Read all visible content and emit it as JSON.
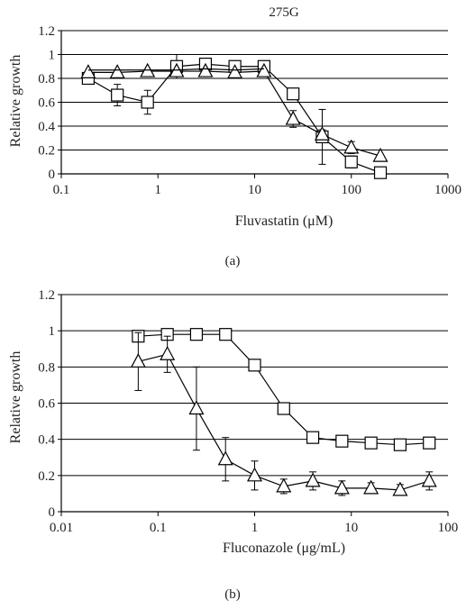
{
  "chart_data": [
    {
      "type": "line",
      "title": "275G",
      "caption": "(a)",
      "xlabel": "Fluvastatin (μM)",
      "ylabel": "Relative growth",
      "xscale": "log",
      "xlim": [
        0.1,
        1000
      ],
      "ylim": [
        0,
        1.2
      ],
      "xticks": [
        0.1,
        1,
        10,
        100,
        1000
      ],
      "xtick_labels": [
        "0.1",
        "1",
        "10",
        "100",
        "1000"
      ],
      "yticks": [
        0,
        0.2,
        0.4,
        0.6,
        0.8,
        1,
        1.2
      ],
      "ytick_labels": [
        "0",
        "0.2",
        "0.4",
        "0.6",
        "0.8",
        "1",
        "1.2"
      ],
      "grid": "horizontal",
      "series": [
        {
          "marker": "square",
          "x": [
            0.19,
            0.38,
            0.78,
            1.56,
            3.1,
            6.25,
            12.5,
            25,
            50,
            100,
            200
          ],
          "y": [
            0.8,
            0.66,
            0.6,
            0.9,
            0.92,
            0.9,
            0.9,
            0.67,
            0.31,
            0.1,
            0.01
          ],
          "err": [
            0,
            0.09,
            0.1,
            0.1,
            0,
            0,
            0,
            0,
            0.23,
            0.05,
            0
          ]
        },
        {
          "marker": "triangle",
          "x": [
            0.19,
            0.38,
            0.78,
            1.56,
            3.1,
            6.25,
            12.5,
            25,
            50,
            100,
            200
          ],
          "y": [
            0.85,
            0.85,
            0.86,
            0.86,
            0.86,
            0.85,
            0.86,
            0.46,
            0.33,
            0.22,
            0.15
          ],
          "err": [
            0,
            0,
            0,
            0,
            0,
            0,
            0,
            0.07,
            0.04,
            0.05,
            0
          ]
        },
        {
          "marker": "none",
          "x": [
            0.19,
            0.38,
            0.78,
            1.56,
            3.1,
            6.25,
            12.5
          ],
          "y": [
            0.87,
            0.87,
            0.87,
            0.87,
            0.88,
            0.87,
            0.88
          ],
          "err": [
            0,
            0,
            0,
            0,
            0,
            0,
            0
          ]
        }
      ]
    },
    {
      "type": "line",
      "title": "",
      "caption": "(b)",
      "xlabel": "Fluconazole (μg/mL)",
      "ylabel": "Relative growth",
      "xscale": "log",
      "xlim": [
        0.01,
        100
      ],
      "ylim": [
        0,
        1.2
      ],
      "xticks": [
        0.01,
        0.1,
        1,
        10,
        100
      ],
      "xtick_labels": [
        "0.01",
        "0.1",
        "1",
        "10",
        "100"
      ],
      "yticks": [
        0,
        0.2,
        0.4,
        0.6,
        0.8,
        1,
        1.2
      ],
      "ytick_labels": [
        "0",
        "0.2",
        "0.4",
        "0.6",
        "0.8",
        "1",
        "1.2"
      ],
      "grid": "horizontal",
      "series": [
        {
          "marker": "square",
          "x": [
            0.0625,
            0.125,
            0.25,
            0.5,
            1,
            2,
            4,
            8,
            16,
            32,
            64
          ],
          "y": [
            0.97,
            0.98,
            0.98,
            0.98,
            0.81,
            0.57,
            0.41,
            0.39,
            0.38,
            0.37,
            0.38
          ],
          "err": [
            0.02,
            0.02,
            0.03,
            0.02,
            0,
            0,
            0,
            0,
            0,
            0,
            0
          ]
        },
        {
          "marker": "triangle",
          "x": [
            0.0625,
            0.125,
            0.25,
            0.5,
            1,
            2,
            4,
            8,
            16,
            32,
            64
          ],
          "y": [
            0.83,
            0.87,
            0.57,
            0.29,
            0.2,
            0.14,
            0.17,
            0.13,
            0.13,
            0.12,
            0.17
          ],
          "err": [
            0.16,
            0.1,
            0.23,
            0.12,
            0.08,
            0.04,
            0.05,
            0.04,
            0.03,
            0.03,
            0.05
          ]
        }
      ]
    }
  ]
}
